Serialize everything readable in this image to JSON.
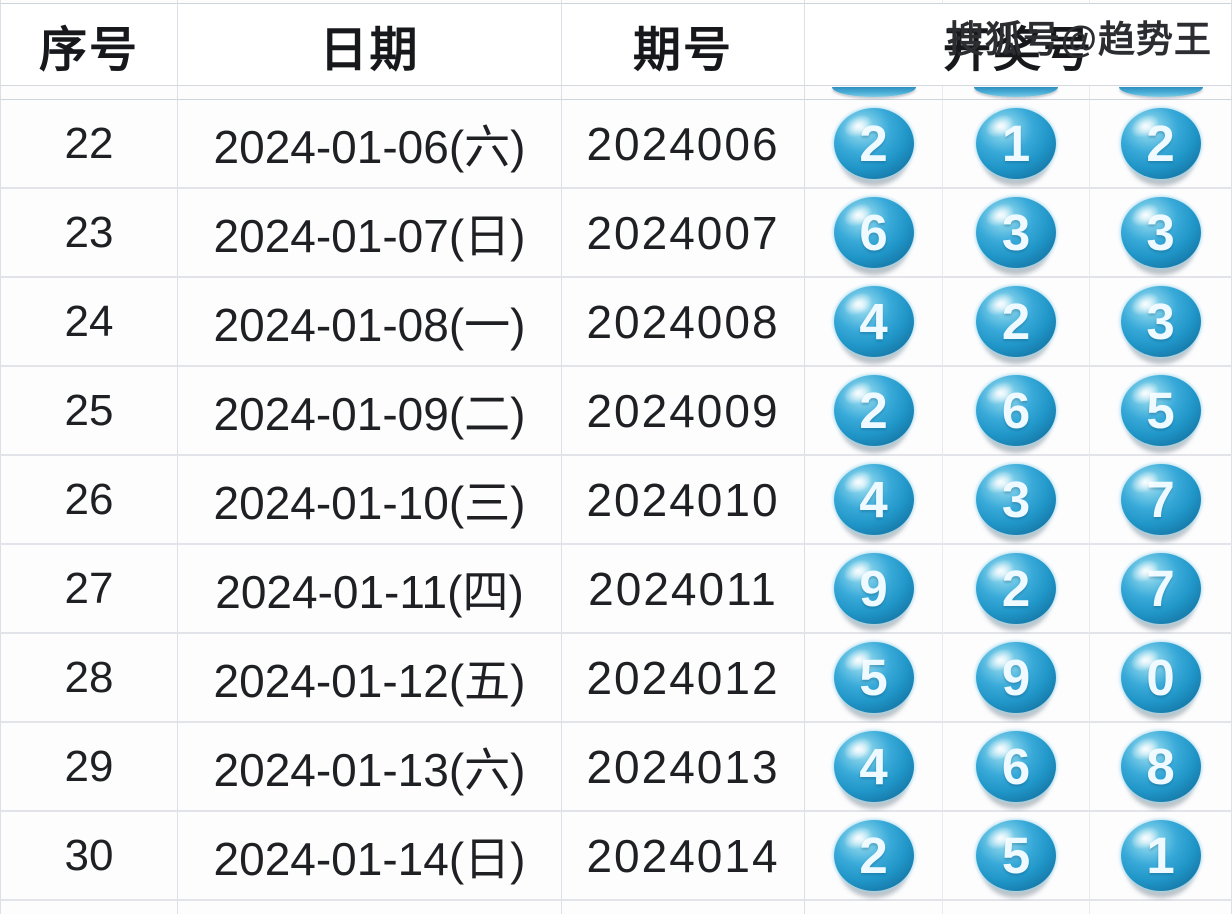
{
  "watermark": {
    "text": "搜狐号@趋势王"
  },
  "colors": {
    "ball_blue": "#2aa0d2",
    "ball_dark_blue": "#126b98",
    "ball_highlight": "#cdedf8",
    "grid_line": "#dcdfe6",
    "header_text": "#17181c",
    "body_text": "#1f2024"
  },
  "chart_data": {
    "type": "table",
    "title": "",
    "columns": [
      "序号",
      "日期",
      "期号",
      "开奖号"
    ],
    "legend_position": "none",
    "grid": true,
    "rows": [
      {
        "serial": "22",
        "date": "2024-01-06(六)",
        "issue": "2024006",
        "balls": [
          "2",
          "1",
          "2"
        ]
      },
      {
        "serial": "23",
        "date": "2024-01-07(日)",
        "issue": "2024007",
        "balls": [
          "6",
          "3",
          "3"
        ]
      },
      {
        "serial": "24",
        "date": "2024-01-08(一)",
        "issue": "2024008",
        "balls": [
          "4",
          "2",
          "3"
        ]
      },
      {
        "serial": "25",
        "date": "2024-01-09(二)",
        "issue": "2024009",
        "balls": [
          "2",
          "6",
          "5"
        ]
      },
      {
        "serial": "26",
        "date": "2024-01-10(三)",
        "issue": "2024010",
        "balls": [
          "4",
          "3",
          "7"
        ]
      },
      {
        "serial": "27",
        "date": "2024-01-11(四)",
        "issue": "2024011",
        "balls": [
          "9",
          "2",
          "7"
        ]
      },
      {
        "serial": "28",
        "date": "2024-01-12(五)",
        "issue": "2024012",
        "balls": [
          "5",
          "9",
          "0"
        ]
      },
      {
        "serial": "29",
        "date": "2024-01-13(六)",
        "issue": "2024013",
        "balls": [
          "4",
          "6",
          "8"
        ]
      },
      {
        "serial": "30",
        "date": "2024-01-14(日)",
        "issue": "2024014",
        "balls": [
          "2",
          "5",
          "1"
        ]
      }
    ]
  }
}
